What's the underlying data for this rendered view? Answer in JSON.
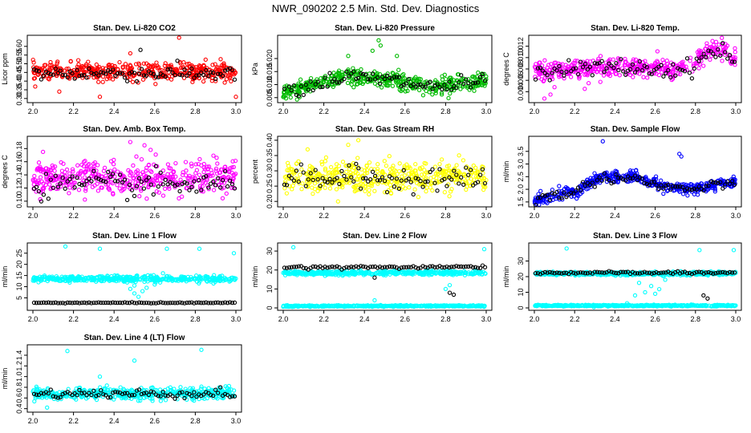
{
  "figure_title": "NWR_090202  2.5 Min. Std. Dev. Diagnostics",
  "colors": {
    "red": "#ff0000",
    "green": "#00bb00",
    "magenta": "#ff00ff",
    "yellow": "#ffff00",
    "blue": "#0000ff",
    "cyan": "#00ffff",
    "black": "#000000"
  },
  "chart_data": [
    {
      "type": "scatter",
      "id": "co2",
      "title": "Stan. Dev. Li-820 CO2",
      "ylabel": "Licor ppm",
      "xlim": [
        2.0,
        3.0
      ],
      "ylim": [
        0.29,
        0.65
      ],
      "xticks": [
        "2.0",
        "2.2",
        "2.4",
        "2.6",
        "2.8",
        "3.0"
      ],
      "yticks": [
        "0.30",
        "0.35",
        "0.40",
        "0.45",
        "0.50",
        "0.55",
        "0.60"
      ],
      "series": [
        {
          "name": "main",
          "color": "red",
          "bands": [
            {
              "x": [
                2.0,
                3.0
              ],
              "center": [
                0.455,
                0.455
              ],
              "spread": 0.045
            }
          ],
          "outliers": [
            {
              "x": 2.33,
              "y": 0.31
            },
            {
              "x": 2.72,
              "y": 0.65
            },
            {
              "x": 2.13,
              "y": 0.34
            },
            {
              "x": 3.0,
              "y": 0.31
            },
            {
              "x": 2.48,
              "y": 0.56
            }
          ]
        },
        {
          "name": "ref",
          "color": "black",
          "bands": [
            {
              "x": [
                2.0,
                3.0
              ],
              "center": [
                0.445,
                0.445
              ],
              "spread": 0.04
            }
          ],
          "outliers": [
            {
              "x": 2.53,
              "y": 0.58
            }
          ]
        }
      ]
    },
    {
      "type": "scatter",
      "id": "pressure",
      "title": "Stan. Dev. Li-820 Pressure",
      "ylabel": "kPa",
      "xlim": [
        2.0,
        3.0
      ],
      "ylim": [
        0.004,
        0.028
      ],
      "xticks": [
        "2.0",
        "2.2",
        "2.4",
        "2.6",
        "2.8",
        "3.0"
      ],
      "yticks": [
        "0.005",
        "0.010",
        "0.015",
        "0.020"
      ],
      "series": [
        {
          "name": "main",
          "color": "green",
          "bands": [
            {
              "x": [
                2.0,
                2.3,
                2.5,
                2.75,
                3.0
              ],
              "center": [
                0.007,
                0.013,
                0.012,
                0.009,
                0.011
              ],
              "spread": 0.003
            }
          ],
          "outliers": [
            {
              "x": 2.47,
              "y": 0.027
            },
            {
              "x": 2.48,
              "y": 0.025
            },
            {
              "x": 2.44,
              "y": 0.023
            },
            {
              "x": 2.32,
              "y": 0.021
            },
            {
              "x": 2.56,
              "y": 0.021
            }
          ]
        },
        {
          "name": "ref",
          "color": "black",
          "bands": [
            {
              "x": [
                2.0,
                2.3,
                2.5,
                2.75,
                3.0
              ],
              "center": [
                0.007,
                0.013,
                0.012,
                0.009,
                0.011
              ],
              "spread": 0.0028
            }
          ],
          "outliers": []
        }
      ]
    },
    {
      "type": "scatter",
      "id": "temp",
      "title": "Stan. Dev. Li-820 Temp.",
      "ylabel": "degrees C",
      "xlim": [
        2.0,
        3.0
      ],
      "ylim": [
        0.0025,
        0.0135
      ],
      "xticks": [
        "2.0",
        "2.2",
        "2.4",
        "2.6",
        "2.8",
        "3.0"
      ],
      "yticks": [
        "0.004",
        "0.006",
        "0.008",
        "0.010",
        "0.012"
      ],
      "series": [
        {
          "name": "main",
          "color": "magenta",
          "bands": [
            {
              "x": [
                2.0,
                2.4,
                2.75,
                2.88,
                2.95,
                3.0
              ],
              "center": [
                0.0075,
                0.0085,
                0.008,
                0.0115,
                0.0115,
                0.0095
              ],
              "spread": 0.0015
            }
          ],
          "outliers": [
            {
              "x": 2.05,
              "y": 0.0028
            },
            {
              "x": 2.08,
              "y": 0.0035
            },
            {
              "x": 2.1,
              "y": 0.0048
            },
            {
              "x": 2.25,
              "y": 0.0045
            }
          ]
        },
        {
          "name": "ref",
          "color": "black",
          "bands": [
            {
              "x": [
                2.0,
                2.4,
                2.75,
                2.88,
                2.95,
                3.0
              ],
              "center": [
                0.0075,
                0.0083,
                0.0078,
                0.011,
                0.011,
                0.009
              ],
              "spread": 0.0014
            }
          ],
          "outliers": []
        }
      ]
    },
    {
      "type": "scatter",
      "id": "boxtemp",
      "title": "Stan. Dev. Amb. Box Temp.",
      "ylabel": "degrees C",
      "xlim": [
        2.0,
        3.0
      ],
      "ylim": [
        0.095,
        0.195
      ],
      "xticks": [
        "2.0",
        "2.2",
        "2.4",
        "2.6",
        "2.8",
        "3.0"
      ],
      "yticks": [
        "0.10",
        "0.12",
        "0.14",
        "0.16",
        "0.18"
      ],
      "series": [
        {
          "name": "main",
          "color": "magenta",
          "bands": [
            {
              "x": [
                2.0,
                3.0
              ],
              "center": [
                0.135,
                0.135
              ],
              "spread": 0.024
            }
          ],
          "outliers": [
            {
              "x": 2.48,
              "y": 0.19
            },
            {
              "x": 2.55,
              "y": 0.185
            },
            {
              "x": 2.58,
              "y": 0.178
            },
            {
              "x": 2.05,
              "y": 0.175
            }
          ]
        },
        {
          "name": "ref",
          "color": "black",
          "bands": [
            {
              "x": [
                2.0,
                3.0
              ],
              "center": [
                0.125,
                0.125
              ],
              "spread": 0.018
            }
          ],
          "outliers": []
        }
      ]
    },
    {
      "type": "scatter",
      "id": "rh",
      "title": "Stan. Dev. Gas Stream RH",
      "ylabel": "percent",
      "xlim": [
        2.0,
        3.0
      ],
      "ylim": [
        0.19,
        0.405
      ],
      "xticks": [
        "2.0",
        "2.2",
        "2.4",
        "2.6",
        "2.8",
        "3.0"
      ],
      "yticks": [
        "0.20",
        "0.25",
        "0.30",
        "0.35",
        "0.40"
      ],
      "series": [
        {
          "name": "main",
          "color": "yellow",
          "bands": [
            {
              "x": [
                2.0,
                3.0
              ],
              "center": [
                0.28,
                0.28
              ],
              "spread": 0.045
            }
          ],
          "outliers": [
            {
              "x": 2.37,
              "y": 0.4
            },
            {
              "x": 2.32,
              "y": 0.385
            },
            {
              "x": 2.12,
              "y": 0.37
            },
            {
              "x": 2.27,
              "y": 0.2
            }
          ]
        },
        {
          "name": "ref",
          "color": "black",
          "bands": [
            {
              "x": [
                2.0,
                3.0
              ],
              "center": [
                0.275,
                0.275
              ],
              "spread": 0.035
            }
          ],
          "outliers": []
        }
      ]
    },
    {
      "type": "scatter",
      "id": "sampleflow",
      "title": "Stan. Dev. Sample Flow",
      "ylabel": "ml/min",
      "xlim": [
        2.0,
        3.0
      ],
      "ylim": [
        1.4,
        4.0
      ],
      "xticks": [
        "2.0",
        "2.2",
        "2.4",
        "2.6",
        "2.8",
        "3.0"
      ],
      "yticks": [
        "1.5",
        "2.0",
        "2.5",
        "3.0",
        "3.5"
      ],
      "series": [
        {
          "name": "main",
          "color": "blue",
          "bands": [
            {
              "x": [
                2.0,
                2.2,
                2.33,
                2.5,
                2.62,
                2.8,
                3.0
              ],
              "center": [
                1.55,
                1.9,
                2.5,
                2.5,
                2.15,
                2.0,
                2.3
              ],
              "spread": 0.2
            }
          ],
          "outliers": [
            {
              "x": 2.34,
              "y": 3.9
            },
            {
              "x": 2.72,
              "y": 3.4
            },
            {
              "x": 2.73,
              "y": 3.3
            }
          ]
        },
        {
          "name": "ref",
          "color": "black",
          "bands": [
            {
              "x": [
                2.0,
                2.2,
                2.33,
                2.5,
                2.62,
                2.8,
                3.0
              ],
              "center": [
                1.6,
                1.9,
                2.45,
                2.45,
                2.1,
                2.0,
                2.3
              ],
              "spread": 0.18
            }
          ],
          "outliers": []
        }
      ]
    },
    {
      "type": "scatter",
      "id": "line1",
      "title": "Stan. Dev. Line 1 Flow",
      "ylabel": "ml/min",
      "xlim": [
        2.0,
        3.0
      ],
      "ylim": [
        0.5,
        28.5
      ],
      "xticks": [
        "2.0",
        "2.2",
        "2.4",
        "2.6",
        "2.8",
        "3.0"
      ],
      "yticks": [
        "5",
        "10",
        "15",
        "20",
        "25"
      ],
      "series": [
        {
          "name": "main",
          "color": "cyan",
          "bands": [
            {
              "x": [
                2.0,
                3.0
              ],
              "center": [
                13.5,
                13.5
              ],
              "spread": 1.2
            }
          ],
          "outliers": [
            {
              "x": 2.16,
              "y": 28
            },
            {
              "x": 2.33,
              "y": 27
            },
            {
              "x": 2.66,
              "y": 27
            },
            {
              "x": 2.82,
              "y": 27
            },
            {
              "x": 2.99,
              "y": 25
            },
            {
              "x": 2.5,
              "y": 7
            },
            {
              "x": 2.52,
              "y": 5.5
            },
            {
              "x": 2.54,
              "y": 8
            },
            {
              "x": 2.48,
              "y": 9
            },
            {
              "x": 2.56,
              "y": 9.5
            },
            {
              "x": 2.5,
              "y": 10.5
            },
            {
              "x": 2.6,
              "y": 11
            }
          ]
        },
        {
          "name": "ref",
          "color": "black",
          "bands": [
            {
              "x": [
                2.0,
                3.0
              ],
              "center": [
                2.8,
                2.8
              ],
              "spread": 0.2
            }
          ],
          "outliers": []
        }
      ]
    },
    {
      "type": "scatter",
      "id": "line2",
      "title": "Stan. Dev. Line 2 Flow",
      "ylabel": "ml/min",
      "xlim": [
        2.0,
        3.0
      ],
      "ylim": [
        0.0,
        33.0
      ],
      "xticks": [
        "2.0",
        "2.2",
        "2.4",
        "2.6",
        "2.8",
        "3.0"
      ],
      "yticks": [
        "0",
        "10",
        "20",
        "30"
      ],
      "series": [
        {
          "name": "main",
          "color": "cyan",
          "bands": [
            {
              "x": [
                2.0,
                3.0
              ],
              "center": [
                18.5,
                18.5
              ],
              "spread": 1.0
            },
            {
              "x": [
                2.0,
                3.0
              ],
              "center": [
                1.0,
                1.0
              ],
              "spread": 0.3
            }
          ],
          "outliers": [
            {
              "x": 2.05,
              "y": 32
            },
            {
              "x": 2.99,
              "y": 31
            },
            {
              "x": 2.45,
              "y": 4
            },
            {
              "x": 2.8,
              "y": 10
            },
            {
              "x": 2.82,
              "y": 12
            }
          ]
        },
        {
          "name": "ref",
          "color": "black",
          "bands": [
            {
              "x": [
                2.0,
                3.0
              ],
              "center": [
                21.5,
                21.5
              ],
              "spread": 0.8
            }
          ],
          "outliers": [
            {
              "x": 2.45,
              "y": 16
            },
            {
              "x": 2.82,
              "y": 8
            },
            {
              "x": 2.84,
              "y": 7
            }
          ]
        }
      ]
    },
    {
      "type": "scatter",
      "id": "line3",
      "title": "Stan. Dev. Line 3 Flow",
      "ylabel": "ml/min",
      "xlim": [
        2.0,
        3.0
      ],
      "ylim": [
        0.0,
        40.0
      ],
      "xticks": [
        "2.0",
        "2.2",
        "2.4",
        "2.6",
        "2.8",
        "3.0"
      ],
      "yticks": [
        "0",
        "10",
        "20",
        "30"
      ],
      "series": [
        {
          "name": "main",
          "color": "cyan",
          "bands": [
            {
              "x": [
                2.0,
                3.0
              ],
              "center": [
                22.0,
                22.0
              ],
              "spread": 1.0
            },
            {
              "x": [
                2.0,
                3.0
              ],
              "center": [
                1.5,
                1.5
              ],
              "spread": 0.4
            }
          ],
          "outliers": [
            {
              "x": 2.16,
              "y": 38
            },
            {
              "x": 2.99,
              "y": 37
            },
            {
              "x": 2.82,
              "y": 37
            },
            {
              "x": 2.55,
              "y": 10
            },
            {
              "x": 2.58,
              "y": 14
            },
            {
              "x": 2.52,
              "y": 16
            },
            {
              "x": 2.62,
              "y": 12
            },
            {
              "x": 2.65,
              "y": 18
            },
            {
              "x": 2.5,
              "y": 8
            },
            {
              "x": 2.46,
              "y": 3
            },
            {
              "x": 2.6,
              "y": 9
            }
          ]
        },
        {
          "name": "ref",
          "color": "black",
          "bands": [
            {
              "x": [
                2.0,
                3.0
              ],
              "center": [
                22.5,
                22.5
              ],
              "spread": 0.8
            }
          ],
          "outliers": [
            {
              "x": 2.84,
              "y": 8
            },
            {
              "x": 2.86,
              "y": 6
            }
          ]
        }
      ]
    },
    {
      "type": "scatter",
      "id": "line4",
      "title": "Stan. Dev. Line 4 (LT) Flow",
      "ylabel": "ml/min",
      "xlim": [
        2.0,
        3.0
      ],
      "ylim": [
        0.38,
        1.55
      ],
      "xticks": [
        "2.0",
        "2.2",
        "2.4",
        "2.6",
        "2.8",
        "3.0"
      ],
      "yticks": [
        "0.4",
        "0.6",
        "0.8",
        "1.0",
        "1.2",
        "1.4"
      ],
      "series": [
        {
          "name": "main",
          "color": "cyan",
          "bands": [
            {
              "x": [
                2.0,
                3.0
              ],
              "center": [
                0.68,
                0.68
              ],
              "spread": 0.1
            }
          ],
          "outliers": [
            {
              "x": 2.17,
              "y": 1.48
            },
            {
              "x": 2.83,
              "y": 1.5
            },
            {
              "x": 2.5,
              "y": 1.3
            },
            {
              "x": 2.33,
              "y": 1.0
            },
            {
              "x": 2.07,
              "y": 0.42
            }
          ]
        },
        {
          "name": "ref",
          "color": "black",
          "bands": [
            {
              "x": [
                2.0,
                3.0
              ],
              "center": [
                0.68,
                0.68
              ],
              "spread": 0.08
            }
          ],
          "outliers": []
        }
      ]
    }
  ]
}
